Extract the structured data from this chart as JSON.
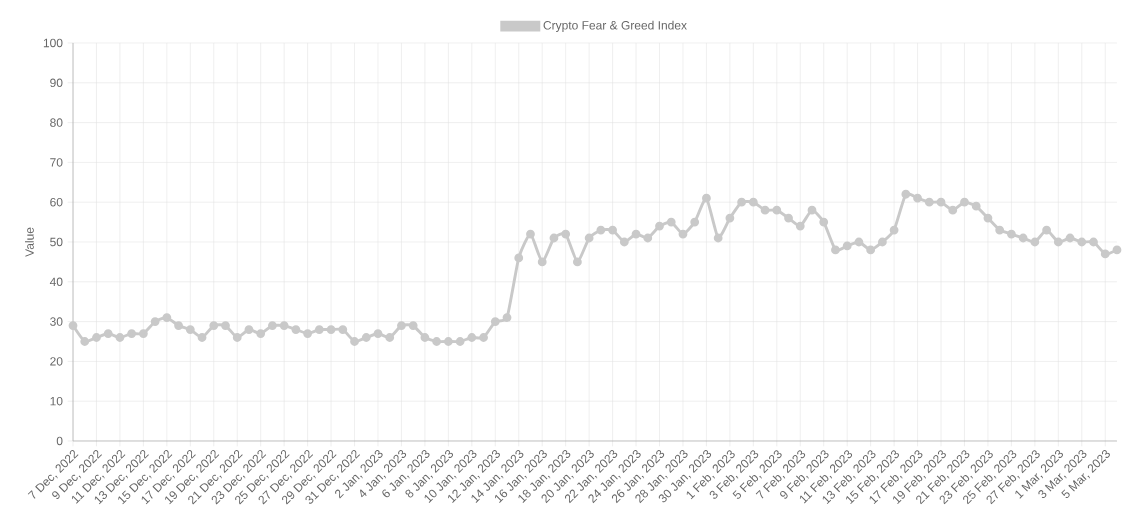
{
  "chart_data": {
    "type": "line",
    "ylabel": "Value",
    "categories": [
      "7 Dec, 2022",
      null,
      "9 Dec, 2022",
      null,
      "11 Dec, 2022",
      null,
      "13 Dec, 2022",
      null,
      "15 Dec, 2022",
      null,
      "17 Dec, 2022",
      null,
      "19 Dec, 2022",
      null,
      "21 Dec, 2022",
      null,
      "23 Dec, 2022",
      null,
      "25 Dec, 2022",
      null,
      "27 Dec, 2022",
      null,
      "29 Dec, 2022",
      null,
      "31 Dec, 2022",
      null,
      "2 Jan, 2023",
      null,
      "4 Jan, 2023",
      null,
      "6 Jan, 2023",
      null,
      "8 Jan, 2023",
      null,
      "10 Jan, 2023",
      null,
      "12 Jan, 2023",
      null,
      "14 Jan, 2023",
      null,
      "16 Jan, 2023",
      null,
      "18 Jan, 2023",
      null,
      "20 Jan, 2023",
      null,
      "22 Jan, 2023",
      null,
      "24 Jan, 2023",
      null,
      "26 Jan, 2023",
      null,
      "28 Jan, 2023",
      null,
      "30 Jan, 2023",
      null,
      "1 Feb, 2023",
      null,
      "3 Feb, 2023",
      null,
      "5 Feb, 2023",
      null,
      "7 Feb, 2023",
      null,
      "9 Feb, 2023",
      null,
      "11 Feb, 2023",
      null,
      "13 Feb, 2023",
      null,
      "15 Feb, 2023",
      null,
      "17 Feb, 2023",
      null,
      "19 Feb, 2023",
      null,
      "21 Feb, 2023",
      null,
      "23 Feb, 2023",
      null,
      "25 Feb, 2023",
      null,
      "27 Feb, 2023",
      null,
      "1 Mar, 2023",
      null,
      "3 Mar, 2023",
      null,
      "5 Mar, 2023",
      null
    ],
    "series": [
      {
        "name": "Crypto Fear & Greed Index",
        "color": "#c9c9c9",
        "values": [
          29,
          25,
          26,
          27,
          26,
          27,
          27,
          30,
          31,
          29,
          28,
          26,
          29,
          29,
          26,
          28,
          27,
          29,
          29,
          28,
          27,
          28,
          28,
          28,
          25,
          26,
          27,
          26,
          29,
          29,
          26,
          25,
          25,
          25,
          26,
          26,
          30,
          31,
          46,
          52,
          45,
          51,
          52,
          45,
          51,
          53,
          53,
          50,
          52,
          51,
          54,
          55,
          52,
          55,
          61,
          51,
          56,
          60,
          60,
          58,
          58,
          56,
          54,
          58,
          55,
          48,
          49,
          50,
          48,
          50,
          53,
          62,
          61,
          60,
          60,
          58,
          60,
          59,
          56,
          53,
          52,
          51,
          50,
          53,
          50,
          51,
          50,
          50,
          47,
          48
        ]
      }
    ],
    "ylim": [
      0,
      100
    ],
    "yticks": [
      0,
      10,
      20,
      30,
      40,
      50,
      60,
      70,
      80,
      90,
      100
    ],
    "grid": true,
    "legend": "top",
    "marker": "circle"
  }
}
